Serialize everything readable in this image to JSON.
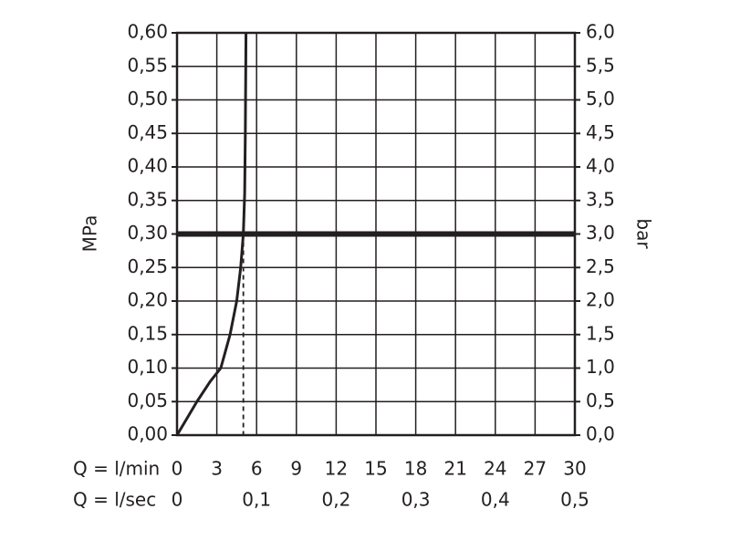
{
  "chart_data": {
    "type": "line",
    "ylabel": "MPa",
    "y2label": "bar",
    "xlabel": "Q = l/min",
    "x2label": "Q = l/sec",
    "xlim": [
      0,
      30
    ],
    "xticks": [
      0,
      3,
      6,
      9,
      12,
      15,
      18,
      21,
      24,
      27,
      30
    ],
    "x2lim": [
      0,
      0.5
    ],
    "x2ticks": [
      0,
      {
        "value": 0.1,
        "label": "0,1"
      },
      {
        "value": 0.2,
        "label": "0,2"
      },
      {
        "value": 0.3,
        "label": "0,3"
      },
      {
        "value": 0.4,
        "label": "0,4"
      },
      {
        "value": 0.5,
        "label": "0,5"
      }
    ],
    "ylim": [
      0,
      0.6
    ],
    "yticks": [
      {
        "value": 0,
        "label": "0,00"
      },
      {
        "value": 0.05,
        "label": "0,05"
      },
      {
        "value": 0.1,
        "label": "0,10"
      },
      {
        "value": 0.15,
        "label": "0,15"
      },
      {
        "value": 0.2,
        "label": "0,20"
      },
      {
        "value": 0.25,
        "label": "0,25"
      },
      {
        "value": 0.3,
        "label": "0,30"
      },
      {
        "value": 0.35,
        "label": "0,35"
      },
      {
        "value": 0.4,
        "label": "0,40"
      },
      {
        "value": 0.45,
        "label": "0,45"
      },
      {
        "value": 0.5,
        "label": "0,50"
      },
      {
        "value": 0.55,
        "label": "0,55"
      },
      {
        "value": 0.6,
        "label": "0,60"
      }
    ],
    "y2lim": [
      0,
      6
    ],
    "y2ticks": [
      {
        "value": 0,
        "label": "0,0"
      },
      {
        "value": 0.5,
        "label": "0,5"
      },
      {
        "value": 1,
        "label": "1,0"
      },
      {
        "value": 1.5,
        "label": "1,5"
      },
      {
        "value": 2,
        "label": "2,0"
      },
      {
        "value": 2.5,
        "label": "2,5"
      },
      {
        "value": 3,
        "label": "3,0"
      },
      {
        "value": 3.5,
        "label": "3,5"
      },
      {
        "value": 4,
        "label": "4,0"
      },
      {
        "value": 4.5,
        "label": "4,5"
      },
      {
        "value": 5,
        "label": "5,0"
      },
      {
        "value": 5.5,
        "label": "5,5"
      },
      {
        "value": 6,
        "label": "6,0"
      }
    ],
    "grid": true,
    "x": [
      0,
      1.5,
      2.5,
      3.3,
      4.0,
      4.5,
      4.8,
      5.0,
      5.1,
      5.15,
      5.2
    ],
    "series": [
      {
        "color": "#231f20",
        "values": [
          0,
          0.05,
          0.08,
          0.1,
          0.15,
          0.2,
          0.25,
          0.3,
          0.36,
          0.45,
          0.6
        ]
      }
    ],
    "reference_lines": [
      {
        "axis": "y",
        "value": 0.3,
        "color": "#231f20"
      },
      {
        "axis": "x",
        "value": 5.0,
        "color": "#231f20"
      }
    ]
  }
}
